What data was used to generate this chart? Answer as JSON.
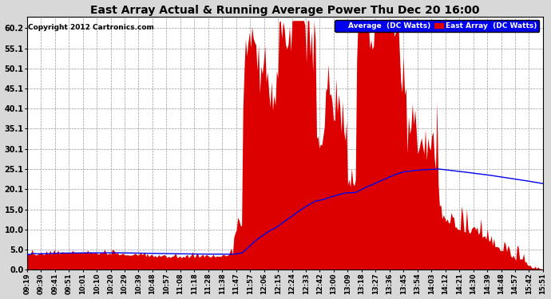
{
  "title": "East Array Actual & Running Average Power Thu Dec 20 16:00",
  "copyright": "Copyright 2012 Cartronics.com",
  "legend_labels": [
    "Average  (DC Watts)",
    "East Array  (DC Watts)"
  ],
  "yticks": [
    0.0,
    5.0,
    10.0,
    15.0,
    20.1,
    25.1,
    30.1,
    35.1,
    40.1,
    45.1,
    50.1,
    55.1,
    60.2
  ],
  "ylim": [
    0,
    63
  ],
  "background_color": "#d8d8d8",
  "plot_bg": "#ffffff",
  "grid_color": "#999999",
  "bar_color": "#dd0000",
  "line_color": "#0000ee",
  "xtick_labels": [
    "09:19",
    "09:30",
    "09:41",
    "09:51",
    "10:01",
    "10:10",
    "10:20",
    "10:29",
    "10:39",
    "10:48",
    "10:57",
    "11:08",
    "11:18",
    "11:28",
    "11:38",
    "11:47",
    "11:57",
    "12:06",
    "12:15",
    "12:24",
    "12:33",
    "12:42",
    "13:00",
    "13:09",
    "13:18",
    "13:27",
    "13:36",
    "13:45",
    "13:54",
    "14:03",
    "14:12",
    "14:21",
    "14:30",
    "14:39",
    "14:48",
    "14:57",
    "15:42",
    "15:51"
  ],
  "n_points": 400,
  "seed": 7
}
